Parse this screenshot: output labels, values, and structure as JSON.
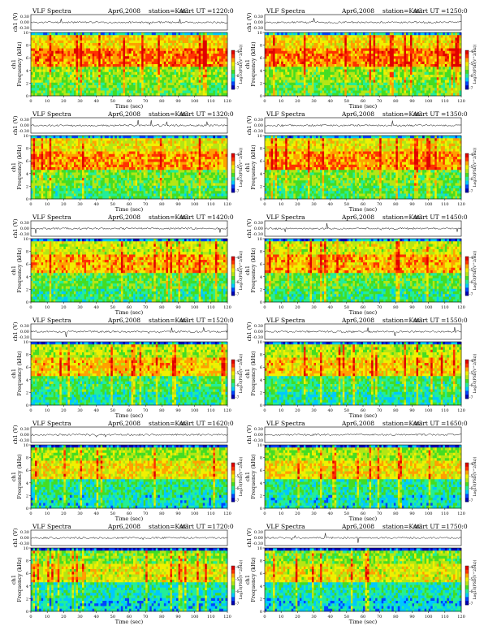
{
  "chart_data": [
    {
      "type": "heatmap",
      "title_left": "VLF Spectra",
      "date": "Apr6,2008",
      "station": "station=KAG",
      "start": "start UT =1220:0",
      "x_label": "Time (sec)",
      "x_ticks": [
        "0",
        "10",
        "20",
        "30",
        "40",
        "50",
        "60",
        "70",
        "80",
        "90",
        "100",
        "110",
        "120"
      ],
      "y_label": "Frequency (kHz)",
      "y_ticks": [
        "0",
        "2",
        "4",
        "6",
        "8",
        "10"
      ],
      "channel_label": "ch1",
      "wave_label": "ch1 (V)",
      "wave_ticks": [
        "0.30",
        "0.00",
        "-0.30"
      ],
      "colorbar_label": "Log10(PSD(V^2/Hz))",
      "colorbar_ticks": [
        "-4",
        "-5",
        "-6",
        "-7"
      ]
    },
    {
      "type": "heatmap",
      "title_left": "VLF Spectra",
      "date": "Apr6,2008",
      "station": "station=KAG",
      "start": "start UT =1250:0",
      "x_label": "Time (sec)",
      "x_ticks": [
        "0",
        "10",
        "20",
        "30",
        "40",
        "50",
        "60",
        "70",
        "80",
        "90",
        "100",
        "110",
        "120"
      ],
      "y_label": "Frequency (kHz)",
      "y_ticks": [
        "0",
        "2",
        "4",
        "6",
        "8",
        "10"
      ],
      "channel_label": "ch1",
      "wave_label": "ch1 (V)",
      "wave_ticks": [
        "0.30",
        "0.00",
        "-0.30"
      ],
      "colorbar_label": "Log10(PSD(V^2/Hz))",
      "colorbar_ticks": [
        "-4",
        "-5",
        "-6",
        "-7"
      ]
    },
    {
      "type": "heatmap",
      "title_left": "VLF Spectra",
      "date": "Apr6,2008",
      "station": "station=KAG",
      "start": "start UT =1320:0",
      "x_label": "Time (sec)",
      "x_ticks": [
        "0",
        "10",
        "20",
        "30",
        "40",
        "50",
        "60",
        "70",
        "80",
        "90",
        "100",
        "110",
        "120"
      ],
      "y_label": "Frequency (kHz)",
      "y_ticks": [
        "0",
        "2",
        "4",
        "6",
        "8",
        "10"
      ],
      "channel_label": "ch1",
      "wave_label": "ch1 (V)",
      "wave_ticks": [
        "0.30",
        "0.00",
        "-0.30"
      ],
      "colorbar_label": "Log10(PSD(V^2/Hz))",
      "colorbar_ticks": [
        "-4",
        "-5",
        "-6",
        "-7"
      ]
    },
    {
      "type": "heatmap",
      "title_left": "VLF Spectra",
      "date": "Apr6,2008",
      "station": "station=KAG",
      "start": "start UT =1350:0",
      "x_label": "Time (sec)",
      "x_ticks": [
        "0",
        "10",
        "20",
        "30",
        "40",
        "50",
        "60",
        "70",
        "80",
        "90",
        "100",
        "110",
        "120"
      ],
      "y_label": "Frequency (kHz)",
      "y_ticks": [
        "0",
        "2",
        "4",
        "6",
        "8",
        "10"
      ],
      "channel_label": "ch1",
      "wave_label": "ch1 (V)",
      "wave_ticks": [
        "0.30",
        "0.00",
        "-0.30"
      ],
      "colorbar_label": "Log10(PSD(V^2/Hz))",
      "colorbar_ticks": [
        "-4",
        "-5",
        "-6",
        "-7"
      ]
    },
    {
      "type": "heatmap",
      "title_left": "VLF Spectra",
      "date": "Apr6,2008",
      "station": "station=KAG",
      "start": "start UT =1420:0",
      "x_label": "Time (sec)",
      "x_ticks": [
        "0",
        "10",
        "20",
        "30",
        "40",
        "50",
        "60",
        "70",
        "80",
        "90",
        "100",
        "110",
        "120"
      ],
      "y_label": "Frequency (kHz)",
      "y_ticks": [
        "0",
        "2",
        "4",
        "6",
        "8",
        "10"
      ],
      "channel_label": "ch1",
      "wave_label": "ch1 (V)",
      "wave_ticks": [
        "0.30",
        "0.00",
        "-0.30"
      ],
      "colorbar_label": "Log10(PSD(V^2/Hz))",
      "colorbar_ticks": [
        "-4",
        "-5",
        "-6",
        "-7"
      ]
    },
    {
      "type": "heatmap",
      "title_left": "VLF Spectra",
      "date": "Apr6,2008",
      "station": "station=KAG",
      "start": "start UT =1450:0",
      "x_label": "Time (sec)",
      "x_ticks": [
        "0",
        "10",
        "20",
        "30",
        "40",
        "50",
        "60",
        "70",
        "80",
        "90",
        "100",
        "110",
        "120"
      ],
      "y_label": "Frequency (kHz)",
      "y_ticks": [
        "0",
        "2",
        "4",
        "6",
        "8",
        "10"
      ],
      "channel_label": "ch1",
      "wave_label": "ch1 (V)",
      "wave_ticks": [
        "0.30",
        "0.00",
        "-0.30"
      ],
      "colorbar_label": "Log10(PSD(V^2/Hz))",
      "colorbar_ticks": [
        "-4",
        "-5",
        "-6",
        "-7"
      ]
    },
    {
      "type": "heatmap",
      "title_left": "VLF Spectra",
      "date": "Apr6,2008",
      "station": "station=KAG",
      "start": "start UT =1520:0",
      "x_label": "Time (sec)",
      "x_ticks": [
        "0",
        "10",
        "20",
        "30",
        "40",
        "50",
        "60",
        "70",
        "80",
        "90",
        "100",
        "110",
        "120"
      ],
      "y_label": "Frequency (kHz)",
      "y_ticks": [
        "0",
        "2",
        "4",
        "6",
        "8",
        "10"
      ],
      "channel_label": "ch1",
      "wave_label": "ch1 (V)",
      "wave_ticks": [
        "0.30",
        "0.00",
        "-0.30"
      ],
      "colorbar_label": "Log10(PSD(V^2/Hz))",
      "colorbar_ticks": [
        "-4",
        "-5",
        "-6",
        "-7"
      ]
    },
    {
      "type": "heatmap",
      "title_left": "VLF Spectra",
      "date": "Apr6,2008",
      "station": "station=KAG",
      "start": "start UT =1550:0",
      "x_label": "Time (sec)",
      "x_ticks": [
        "0",
        "10",
        "20",
        "30",
        "40",
        "50",
        "60",
        "70",
        "80",
        "90",
        "100",
        "110",
        "120"
      ],
      "y_label": "Frequency (kHz)",
      "y_ticks": [
        "0",
        "2",
        "4",
        "6",
        "8",
        "10"
      ],
      "channel_label": "ch1",
      "wave_label": "ch1 (V)",
      "wave_ticks": [
        "0.30",
        "0.00",
        "-0.30"
      ],
      "colorbar_label": "Log10(PSD(V^2/Hz))",
      "colorbar_ticks": [
        "-4",
        "-5",
        "-6",
        "-7"
      ]
    },
    {
      "type": "heatmap",
      "title_left": "VLF Spectra",
      "date": "Apr6,2008",
      "station": "station=KAG",
      "start": "start UT =1620:0",
      "x_label": "Time (sec)",
      "x_ticks": [
        "0",
        "10",
        "20",
        "30",
        "40",
        "50",
        "60",
        "70",
        "80",
        "90",
        "100",
        "110",
        "120"
      ],
      "y_label": "Frequency (kHz)",
      "y_ticks": [
        "0",
        "2",
        "4",
        "6",
        "8",
        "10"
      ],
      "channel_label": "ch1",
      "wave_label": "ch1 (V)",
      "wave_ticks": [
        "0.30",
        "0.00",
        "-0.30"
      ],
      "colorbar_label": "Log10(PSD(V^2/Hz))",
      "colorbar_ticks": [
        "-4",
        "-5",
        "-6",
        "-7"
      ]
    },
    {
      "type": "heatmap",
      "title_left": "VLF Spectra",
      "date": "Apr6,2008",
      "station": "station=KAG",
      "start": "start UT =1650:0",
      "x_label": "Time (sec)",
      "x_ticks": [
        "0",
        "10",
        "20",
        "30",
        "40",
        "50",
        "60",
        "70",
        "80",
        "90",
        "100",
        "110",
        "120"
      ],
      "y_label": "Frequency (kHz)",
      "y_ticks": [
        "0",
        "2",
        "4",
        "6",
        "8",
        "10"
      ],
      "channel_label": "ch1",
      "wave_label": "ch1 (V)",
      "wave_ticks": [
        "0.30",
        "0.00",
        "-0.30"
      ],
      "colorbar_label": "Log10(PSD(V^2/Hz))",
      "colorbar_ticks": [
        "-4",
        "-5",
        "-6",
        "-7"
      ]
    },
    {
      "type": "heatmap",
      "title_left": "VLF Spectra",
      "date": "Apr6,2008",
      "station": "station=KAG",
      "start": "start UT =1720:0",
      "x_label": "Time (sec)",
      "x_ticks": [
        "0",
        "10",
        "20",
        "30",
        "40",
        "50",
        "60",
        "70",
        "80",
        "90",
        "100",
        "110",
        "120"
      ],
      "y_label": "Frequency (kHz)",
      "y_ticks": [
        "0",
        "2",
        "4",
        "6",
        "8",
        "10"
      ],
      "channel_label": "ch1",
      "wave_label": "ch1 (V)",
      "wave_ticks": [
        "0.30",
        "0.00",
        "-0.30"
      ],
      "colorbar_label": "Log10(PSD(V^2/Hz))",
      "colorbar_ticks": [
        "-4",
        "-5",
        "-6",
        "-7"
      ]
    },
    {
      "type": "heatmap",
      "title_left": "VLF Spectra",
      "date": "Apr6,2008",
      "station": "station=KAG",
      "start": "start UT =1750:0",
      "x_label": "Time (sec)",
      "x_ticks": [
        "0",
        "10",
        "20",
        "30",
        "40",
        "50",
        "60",
        "70",
        "80",
        "90",
        "100",
        "110",
        "120"
      ],
      "y_label": "Frequency (kHz)",
      "y_ticks": [
        "0",
        "2",
        "4",
        "6",
        "8",
        "10"
      ],
      "channel_label": "ch1",
      "wave_label": "ch1 (V)",
      "wave_ticks": [
        "0.30",
        "0.00",
        "-0.30"
      ],
      "colorbar_label": "Log10(PSD(V^2/Hz))",
      "colorbar_ticks": [
        "-4",
        "-5",
        "-6",
        "-7"
      ]
    }
  ]
}
